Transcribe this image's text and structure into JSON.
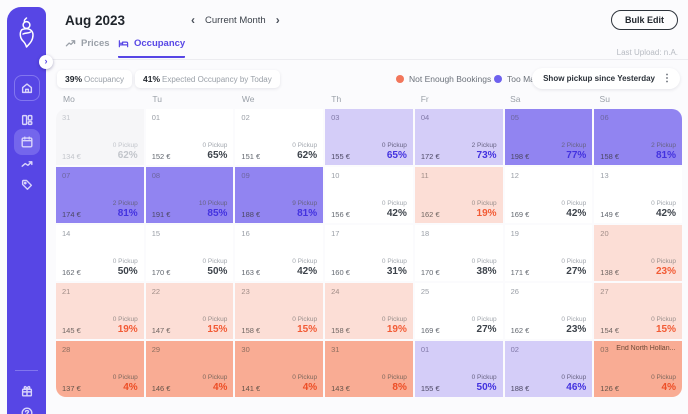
{
  "header": {
    "title": "Aug 2023",
    "prev_icon": "‹",
    "month_filter": "Current Month",
    "next_icon": "›",
    "kebab_icon": "⋮",
    "bulk_edit_label": "Bulk Edit",
    "last_upload": "Last Upload: n.A."
  },
  "tabs": {
    "prices": "Prices",
    "occupancy": "Occupancy"
  },
  "stats": {
    "occupancy_value": "39%",
    "occupancy_label": "Occupancy",
    "expected_value": "41%",
    "expected_label": "Expected Occupancy by Today"
  },
  "legend": {
    "not_enough_label": "Not Enough Bookings",
    "not_enough_color": "#f2765b",
    "too_many_label": "Too Many Bookings",
    "too_many_color": "#6e61ee",
    "pickup_filter_label": "Show pickup since Yesterday",
    "pickup_filter_kebab": "⋮"
  },
  "colors": {
    "accent": "#5746e5",
    "cell_past": "#f6f6f8",
    "cell_neutral": "#ffffff",
    "cell_purple_light": "#d4cdf8",
    "cell_purple": "#9184f1",
    "cell_red_light": "#fcded6",
    "cell_red": "#f9ac94",
    "pct_purple": "#4332df",
    "pct_orange": "#f25b35"
  },
  "calendar": {
    "weekdays": [
      "Mo",
      "Tu",
      "We",
      "Th",
      "Fr",
      "Sa",
      "Su"
    ],
    "cells": [
      {
        "day": "31",
        "pickup": "0 Pickup",
        "price": "134 €",
        "occupancy": "62%",
        "state": "past"
      },
      {
        "day": "01",
        "pickup": "0 Pickup",
        "price": "152 €",
        "occupancy": "65%",
        "state": "neutral"
      },
      {
        "day": "02",
        "pickup": "0 Pickup",
        "price": "151 €",
        "occupancy": "62%",
        "state": "neutral"
      },
      {
        "day": "03",
        "pickup": "0 Pickup",
        "price": "155 €",
        "occupancy": "65%",
        "state": "plight"
      },
      {
        "day": "04",
        "pickup": "2 Pickup",
        "price": "172 €",
        "occupancy": "73%",
        "state": "plight"
      },
      {
        "day": "05",
        "pickup": "2 Pickup",
        "price": "198 €",
        "occupancy": "77%",
        "state": "purple"
      },
      {
        "day": "06",
        "pickup": "2 Pickup",
        "price": "158 €",
        "occupancy": "81%",
        "state": "purple"
      },
      {
        "day": "07",
        "pickup": "2 Pickup",
        "price": "174 €",
        "occupancy": "81%",
        "state": "purple"
      },
      {
        "day": "08",
        "pickup": "10 Pickup",
        "price": "191 €",
        "occupancy": "85%",
        "state": "purple"
      },
      {
        "day": "09",
        "pickup": "9 Pickup",
        "price": "188 €",
        "occupancy": "81%",
        "state": "purple"
      },
      {
        "day": "10",
        "pickup": "0 Pickup",
        "price": "156 €",
        "occupancy": "42%",
        "state": "neutral"
      },
      {
        "day": "11",
        "pickup": "0 Pickup",
        "price": "162 €",
        "occupancy": "19%",
        "state": "rlight"
      },
      {
        "day": "12",
        "pickup": "0 Pickup",
        "price": "169 €",
        "occupancy": "42%",
        "state": "neutral"
      },
      {
        "day": "13",
        "pickup": "0 Pickup",
        "price": "149 €",
        "occupancy": "42%",
        "state": "neutral"
      },
      {
        "day": "14",
        "pickup": "0 Pickup",
        "price": "162 €",
        "occupancy": "50%",
        "state": "neutral"
      },
      {
        "day": "15",
        "pickup": "0 Pickup",
        "price": "170 €",
        "occupancy": "50%",
        "state": "neutral"
      },
      {
        "day": "16",
        "pickup": "0 Pickup",
        "price": "163 €",
        "occupancy": "42%",
        "state": "neutral"
      },
      {
        "day": "17",
        "pickup": "0 Pickup",
        "price": "160 €",
        "occupancy": "31%",
        "state": "neutral"
      },
      {
        "day": "18",
        "pickup": "0 Pickup",
        "price": "170 €",
        "occupancy": "38%",
        "state": "neutral"
      },
      {
        "day": "19",
        "pickup": "0 Pickup",
        "price": "171 €",
        "occupancy": "27%",
        "state": "neutral"
      },
      {
        "day": "20",
        "pickup": "0 Pickup",
        "price": "138 €",
        "occupancy": "23%",
        "state": "rlight"
      },
      {
        "day": "21",
        "pickup": "0 Pickup",
        "price": "145 €",
        "occupancy": "19%",
        "state": "rlight"
      },
      {
        "day": "22",
        "pickup": "0 Pickup",
        "price": "147 €",
        "occupancy": "15%",
        "state": "rlight"
      },
      {
        "day": "23",
        "pickup": "0 Pickup",
        "price": "158 €",
        "occupancy": "15%",
        "state": "rlight"
      },
      {
        "day": "24",
        "pickup": "0 Pickup",
        "price": "158 €",
        "occupancy": "19%",
        "state": "rlight"
      },
      {
        "day": "25",
        "pickup": "0 Pickup",
        "price": "169 €",
        "occupancy": "27%",
        "state": "neutral"
      },
      {
        "day": "26",
        "pickup": "0 Pickup",
        "price": "162 €",
        "occupancy": "23%",
        "state": "neutral"
      },
      {
        "day": "27",
        "pickup": "0 Pickup",
        "price": "154 €",
        "occupancy": "15%",
        "state": "rlight"
      },
      {
        "day": "28",
        "pickup": "0 Pickup",
        "price": "137 €",
        "occupancy": "4%",
        "state": "red"
      },
      {
        "day": "29",
        "pickup": "0 Pickup",
        "price": "146 €",
        "occupancy": "4%",
        "state": "red"
      },
      {
        "day": "30",
        "pickup": "0 Pickup",
        "price": "141 €",
        "occupancy": "4%",
        "state": "red"
      },
      {
        "day": "31",
        "pickup": "0 Pickup",
        "price": "143 €",
        "occupancy": "8%",
        "state": "red"
      },
      {
        "day": "01",
        "pickup": "0 Pickup",
        "price": "155 €",
        "occupancy": "50%",
        "state": "plight"
      },
      {
        "day": "02",
        "pickup": "0 Pickup",
        "price": "188 €",
        "occupancy": "46%",
        "state": "plight"
      },
      {
        "day": "03",
        "pickup": "0 Pickup",
        "price": "126 €",
        "occupancy": "4%",
        "state": "red",
        "event": "End North Hollan..."
      }
    ]
  }
}
